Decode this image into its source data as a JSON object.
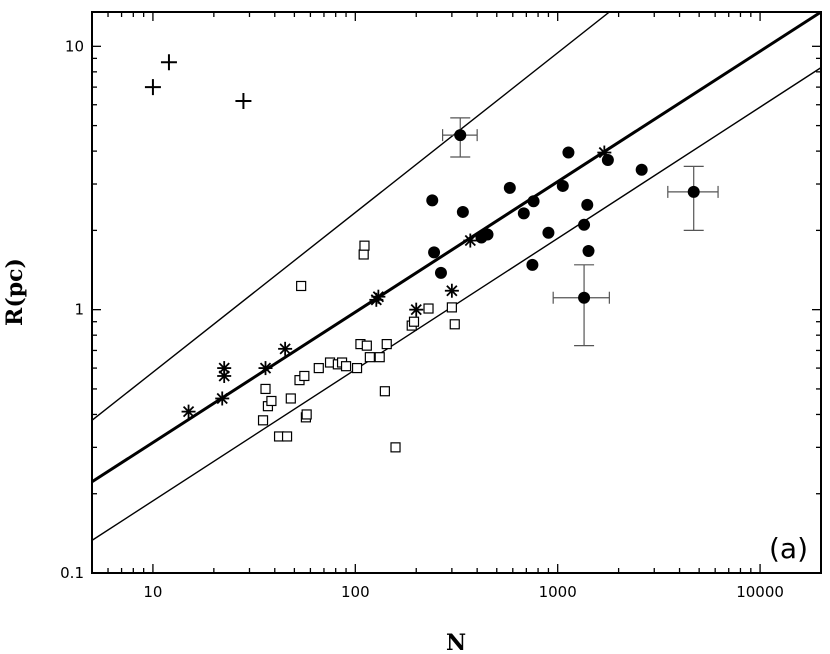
{
  "chart_data": {
    "type": "scatter",
    "title": "",
    "xlabel": "N",
    "ylabel": "R(pc)",
    "panel_label": "(a)",
    "x_scale": "log",
    "y_scale": "log",
    "xlim": [
      5,
      20000
    ],
    "ylim": [
      0.1,
      13.5
    ],
    "x_ticks": [
      10,
      100,
      1000,
      10000
    ],
    "x_tick_labels": [
      "10",
      "100",
      "1000",
      "10000"
    ],
    "y_ticks": [
      0.1,
      1,
      10
    ],
    "y_tick_labels": [
      "0.1",
      "1",
      "10"
    ],
    "grid": false,
    "colors": {
      "marker": "#000000",
      "background": "#ffffff"
    },
    "lines": [
      {
        "style": "thick",
        "points": [
          [
            5,
            0.222
          ],
          [
            20000,
            13.5
          ]
        ]
      },
      {
        "style": "thin",
        "points": [
          [
            5,
            0.38
          ],
          [
            1800,
            13.5
          ]
        ]
      },
      {
        "style": "thin",
        "points": [
          [
            5,
            0.133
          ],
          [
            20000,
            8.3
          ]
        ]
      }
    ],
    "series": [
      {
        "marker": "plus",
        "points": [
          [
            10,
            7.0
          ],
          [
            12,
            8.7
          ],
          [
            28,
            6.2
          ]
        ]
      },
      {
        "marker": "asterisk",
        "points": [
          [
            15,
            0.41
          ],
          [
            22,
            0.46
          ],
          [
            22.5,
            0.56
          ],
          [
            22.5,
            0.6
          ],
          [
            36,
            0.6
          ],
          [
            45,
            0.71
          ],
          [
            127,
            1.09
          ],
          [
            130,
            1.12
          ],
          [
            200,
            1.0
          ],
          [
            300,
            1.18
          ],
          [
            370,
            1.83
          ],
          [
            1700,
            3.95
          ]
        ]
      },
      {
        "marker": "filled-circle",
        "points": [
          [
            240,
            2.6
          ],
          [
            245,
            1.65
          ],
          [
            265,
            1.38
          ],
          [
            340,
            2.35
          ],
          [
            420,
            1.88
          ],
          [
            450,
            1.93
          ],
          [
            580,
            2.9
          ],
          [
            680,
            2.32
          ],
          [
            750,
            1.48
          ],
          [
            760,
            2.58
          ],
          [
            900,
            1.96
          ],
          [
            1060,
            2.95
          ],
          [
            1130,
            3.95
          ],
          [
            1350,
            2.1
          ],
          [
            1400,
            2.5
          ],
          [
            1420,
            1.67
          ],
          [
            1770,
            3.7
          ],
          [
            2600,
            3.4
          ]
        ]
      },
      {
        "marker": "filled-circle-errorbar",
        "points": [
          [
            330,
            4.6
          ],
          [
            1350,
            1.11
          ],
          [
            4700,
            2.8
          ]
        ]
      },
      {
        "marker": "open-square",
        "points": [
          [
            35,
            0.38
          ],
          [
            36,
            0.5
          ],
          [
            37,
            0.43
          ],
          [
            38.5,
            0.45
          ],
          [
            42,
            0.33
          ],
          [
            46,
            0.33
          ],
          [
            48,
            0.46
          ],
          [
            53,
            0.54
          ],
          [
            54,
            1.23
          ],
          [
            56,
            0.56
          ],
          [
            57,
            0.39
          ],
          [
            57.5,
            0.4
          ],
          [
            66,
            0.6
          ],
          [
            75,
            0.63
          ],
          [
            82,
            0.62
          ],
          [
            86,
            0.63
          ],
          [
            90,
            0.61
          ],
          [
            102,
            0.6
          ],
          [
            106,
            0.74
          ],
          [
            110,
            1.62
          ],
          [
            111,
            1.75
          ],
          [
            114,
            0.73
          ],
          [
            118,
            0.66
          ],
          [
            132,
            0.66
          ],
          [
            140,
            0.49
          ],
          [
            143,
            0.74
          ],
          [
            158,
            0.3
          ],
          [
            190,
            0.87
          ],
          [
            195,
            0.9
          ],
          [
            230,
            1.01
          ],
          [
            300,
            1.02
          ],
          [
            310,
            0.88
          ]
        ]
      }
    ],
    "error_bars": [
      {
        "x": 330,
        "y": 4.6,
        "xerr": [
          270,
          400
        ],
        "yerr": [
          3.8,
          5.35
        ]
      },
      {
        "x": 1350,
        "y": 1.11,
        "xerr": [
          950,
          1800
        ],
        "yerr": [
          0.73,
          1.48
        ]
      },
      {
        "x": 4700,
        "y": 2.8,
        "xerr": [
          3500,
          6200
        ],
        "yerr": [
          2.0,
          3.5
        ]
      }
    ]
  }
}
